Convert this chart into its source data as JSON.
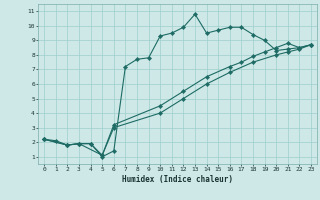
{
  "xlabel": "Humidex (Indice chaleur)",
  "xlim": [
    -0.5,
    23.5
  ],
  "ylim": [
    0.5,
    11.5
  ],
  "xticks": [
    0,
    1,
    2,
    3,
    4,
    5,
    6,
    7,
    8,
    9,
    10,
    11,
    12,
    13,
    14,
    15,
    16,
    17,
    18,
    19,
    20,
    21,
    22,
    23
  ],
  "yticks": [
    1,
    2,
    3,
    4,
    5,
    6,
    7,
    8,
    9,
    10,
    11
  ],
  "bg_color": "#cde8e6",
  "grid_color": "#9fcfcc",
  "line_color": "#1e6b65",
  "curve1_x": [
    0,
    1,
    2,
    3,
    4,
    5,
    6,
    7,
    8,
    9,
    10,
    11,
    12,
    13,
    14,
    15,
    16,
    17,
    18,
    19,
    20,
    21,
    22,
    23
  ],
  "curve1_y": [
    2.2,
    2.1,
    1.8,
    1.9,
    1.9,
    1.0,
    1.4,
    7.2,
    7.7,
    7.8,
    9.3,
    9.5,
    9.9,
    10.8,
    9.5,
    9.7,
    9.9,
    9.9,
    9.4,
    9.0,
    8.3,
    8.4,
    8.5,
    8.7
  ],
  "curve2_x": [
    0,
    2,
    3,
    4,
    5,
    6,
    10,
    12,
    14,
    16,
    17,
    18,
    19,
    20,
    21,
    22,
    23
  ],
  "curve2_y": [
    2.2,
    1.8,
    1.9,
    1.9,
    1.1,
    3.2,
    4.5,
    5.5,
    6.5,
    7.2,
    7.5,
    7.9,
    8.2,
    8.5,
    8.8,
    8.5,
    8.7
  ],
  "curve3_x": [
    0,
    2,
    3,
    5,
    6,
    10,
    12,
    14,
    16,
    18,
    20,
    21,
    22,
    23
  ],
  "curve3_y": [
    2.2,
    1.8,
    1.9,
    1.1,
    3.0,
    4.0,
    5.0,
    6.0,
    6.8,
    7.5,
    8.0,
    8.2,
    8.4,
    8.7
  ]
}
